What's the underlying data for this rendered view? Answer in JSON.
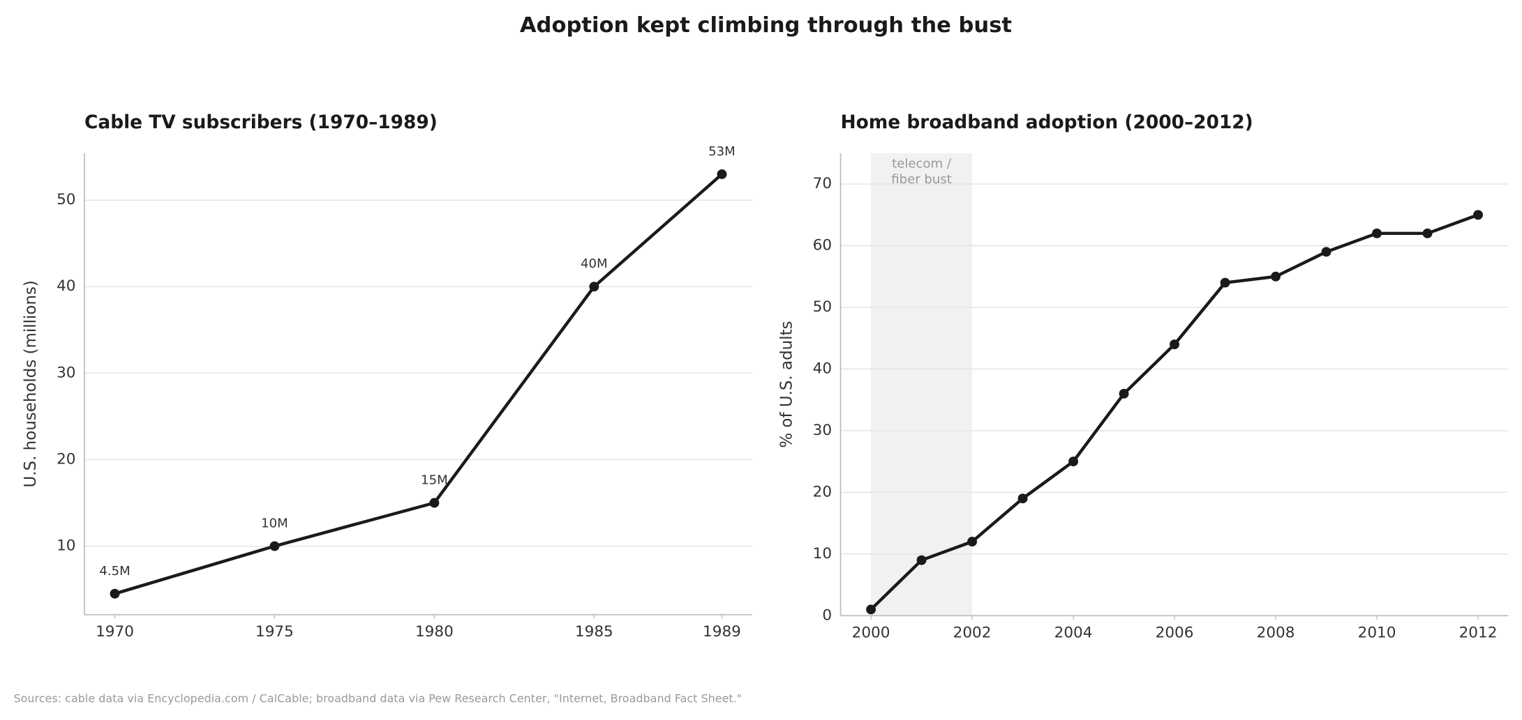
{
  "title": "Adoption kept climbing through the bust",
  "source": "Sources: cable data via Encyclopedia.com / CalCable; broadband data via Pew Research Center, \"Internet, Broadband Fact Sheet.\"",
  "chart_data": [
    {
      "type": "line",
      "title": "Cable TV subscribers (1970–1989)",
      "y_label": "U.S. households (millions)",
      "x": [
        1970,
        1975,
        1980,
        1985,
        1989
      ],
      "values": [
        4.5,
        10,
        15,
        40,
        53
      ],
      "value_labels": [
        "4.5M",
        "10M",
        "15M",
        "40M",
        "53M"
      ],
      "color": "#1a1a1a",
      "xlim": [
        1969.05,
        1989.95
      ],
      "xticks": [
        1970,
        1975,
        1980,
        1985,
        1989
      ],
      "ylim": [
        2.075,
        55.425
      ],
      "yticks": [
        10,
        20,
        30,
        40,
        50
      ],
      "grid": true
    },
    {
      "type": "line",
      "title": "Home broadband adoption (2000–2012)",
      "y_label": "% of U.S. adults",
      "x": [
        2000,
        2001,
        2002,
        2003,
        2004,
        2005,
        2006,
        2007,
        2008,
        2009,
        2010,
        2011,
        2012
      ],
      "values": [
        1,
        9,
        12,
        19,
        25,
        36,
        44,
        54,
        55,
        59,
        62,
        62,
        65
      ],
      "color": "#1a1a1a",
      "xlim": [
        1999.4,
        2012.6
      ],
      "xticks": [
        2000,
        2002,
        2004,
        2006,
        2008,
        2010,
        2012
      ],
      "ylim": [
        0,
        75
      ],
      "yticks": [
        0,
        10,
        20,
        30,
        40,
        50,
        60,
        70
      ],
      "grid": true,
      "shade": {
        "x": [
          2000,
          2002
        ],
        "label": "telecom /\nfiber bust"
      }
    }
  ]
}
